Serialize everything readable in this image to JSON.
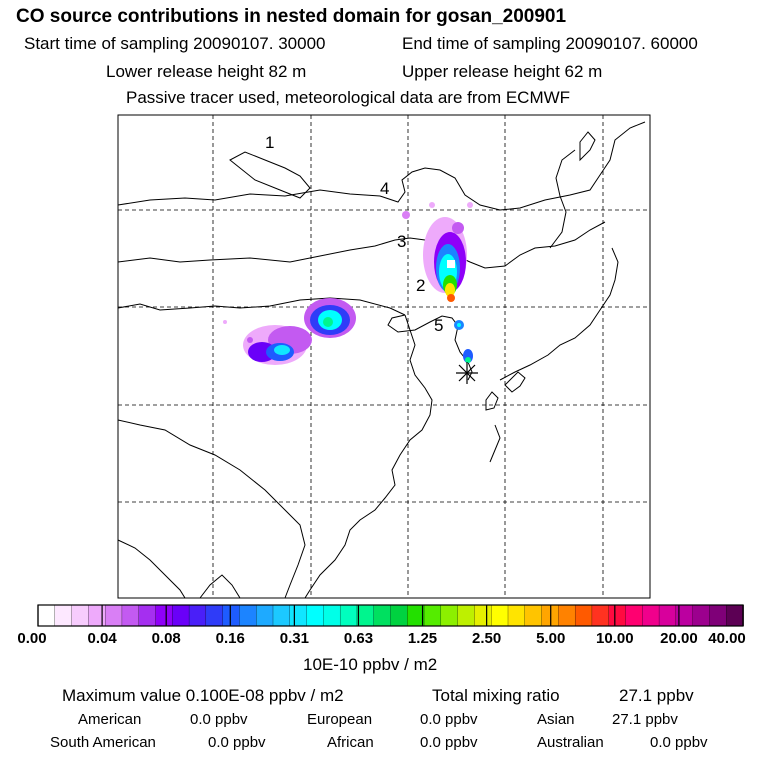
{
  "header": {
    "title": "CO  source contributions in nested domain for gosan_200901",
    "start_label": "Start time of sampling 20090107. 30000",
    "end_label": "End time of sampling 20090107. 60000",
    "lower_label": "Lower release height   82 m",
    "upper_label": "Upper release height   62 m",
    "tracer_label": "Passive tracer used, meteorological data are from ECMWF"
  },
  "map": {
    "point_labels": [
      "5",
      "4",
      "3",
      "2",
      "1"
    ],
    "receptor_marker": "star-icon"
  },
  "colorbar": {
    "tick_labels": [
      "0.00",
      "0.04",
      "0.08",
      "0.16",
      "0.31",
      "0.63",
      "1.25",
      "2.50",
      "5.00",
      "10.00",
      "20.00",
      "40.00"
    ],
    "units": "10E-10 ppbv / m2",
    "colors": [
      "#ffffff",
      "#fde8ff",
      "#f7ccfd",
      "#eeaafb",
      "#d97ff5",
      "#c35af1",
      "#a52ff0",
      "#8f00f8",
      "#6a00f8",
      "#4a1ff8",
      "#2f3cf8",
      "#1e5cff",
      "#1c84ff",
      "#1eaaff",
      "#1cc9ff",
      "#10e6ff",
      "#00ffff",
      "#00ffe8",
      "#00ffbe",
      "#00f58e",
      "#00e060",
      "#00d240",
      "#23e000",
      "#55ec00",
      "#8cf000",
      "#bef000",
      "#e6f000",
      "#ffff00",
      "#ffe400",
      "#ffc400",
      "#ffa500",
      "#ff8200",
      "#ff5a00",
      "#ff3220",
      "#ff0a40",
      "#ff0070",
      "#f0008c",
      "#d8009c",
      "#bb00a0",
      "#9c008e",
      "#7f0078",
      "#5c0054"
    ]
  },
  "summary": {
    "max_label": "Maximum value  0.100E-08 ppbv / m2",
    "total_label": "Total mixing ratio",
    "total_value": "27.1 ppbv",
    "american_label": "American",
    "american_value": "0.0 ppbv",
    "european_label": "European",
    "european_value": "0.0 ppbv",
    "asian_label": "Asian",
    "asian_value": "27.1 ppbv",
    "south_american_label": "South American",
    "south_american_value": "0.0 ppbv",
    "african_label": "African",
    "african_value": "0.0 ppbv",
    "australian_label": "Australian",
    "australian_value": "0.0 ppbv"
  }
}
